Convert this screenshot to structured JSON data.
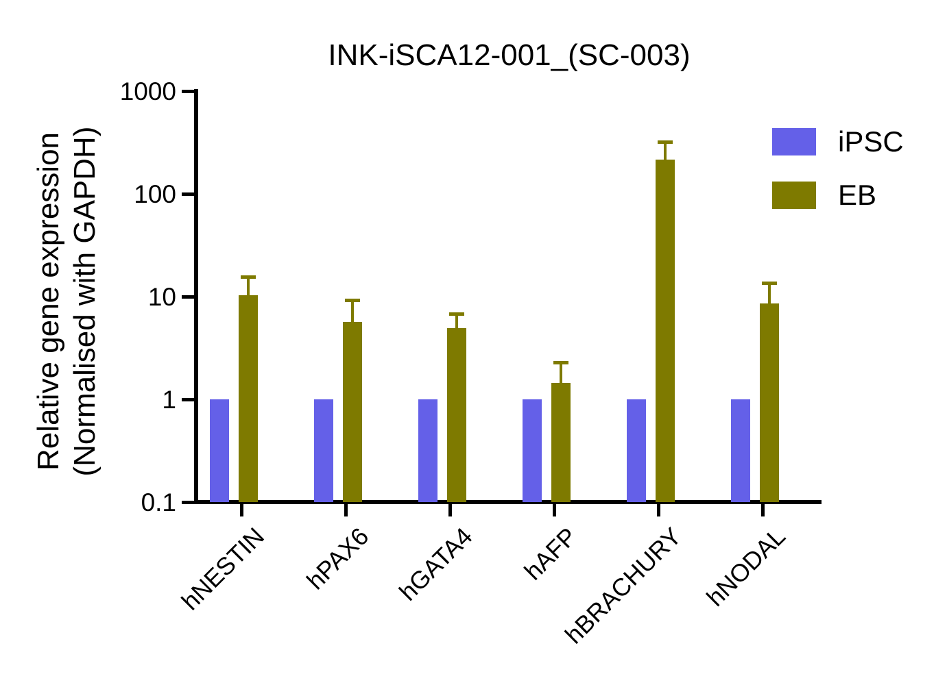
{
  "title": "INK-iSCA12-001_(SC-003)",
  "chart_data": {
    "type": "bar",
    "scale": "log",
    "title": "INK-iSCA12-001_(SC-003)",
    "ylabel_line1": "Relative gene expression",
    "ylabel_line2": "(Normalised with GAPDH)",
    "xlabel": "",
    "categories": [
      "hNESTIN",
      "hPAX6",
      "hGATA4",
      "hAFP",
      "hBRACHURY",
      "hNODAL"
    ],
    "ytick_values": [
      1000,
      100,
      10,
      1,
      0.1
    ],
    "ylim": [
      0.1,
      1000
    ],
    "grid": false,
    "legend_position": "top-right",
    "series": [
      {
        "name": "iPSC",
        "color": "#6460E8",
        "values": [
          1,
          1,
          1,
          1,
          1,
          1
        ],
        "error_top": null
      },
      {
        "name": "EB",
        "color": "#7E7A00",
        "values": [
          10.3,
          5.7,
          4.9,
          1.45,
          215,
          8.6
        ],
        "error_top": [
          15.7,
          9.3,
          6.8,
          2.3,
          320,
          13.5
        ]
      }
    ]
  }
}
